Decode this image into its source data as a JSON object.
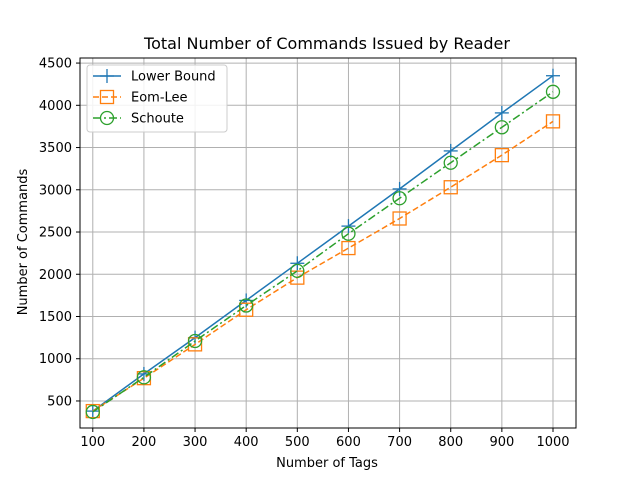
{
  "chart_data": {
    "type": "line",
    "title": "Total Number of Commands Issued by Reader",
    "xlabel": "Number of Tags",
    "ylabel": "Number of Commands",
    "x": [
      100,
      200,
      300,
      400,
      500,
      600,
      700,
      800,
      900,
      1000
    ],
    "xticks": [
      100,
      200,
      300,
      400,
      500,
      600,
      700,
      800,
      900,
      1000
    ],
    "yticks": [
      500,
      1000,
      1500,
      2000,
      2500,
      3000,
      3500,
      4000,
      4500
    ],
    "xlim": [
      75,
      1045
    ],
    "ylim": [
      180,
      4560
    ],
    "grid": true,
    "legend_position": "top-left",
    "series": [
      {
        "name": "Lower Bound",
        "color": "#1f77b4",
        "linestyle": "solid",
        "marker": "plus",
        "values": [
          380,
          820,
          1250,
          1690,
          2130,
          2570,
          3010,
          3460,
          3910,
          4350
        ]
      },
      {
        "name": "Eom-Lee",
        "color": "#ff7f0e",
        "linestyle": "dashed",
        "marker": "square",
        "values": [
          380,
          770,
          1170,
          1580,
          1960,
          2310,
          2660,
          3030,
          3410,
          3810
        ]
      },
      {
        "name": "Schoute",
        "color": "#2ca02c",
        "linestyle": "dashdot",
        "marker": "circle",
        "values": [
          370,
          780,
          1210,
          1630,
          2040,
          2480,
          2900,
          3320,
          3740,
          4160
        ]
      }
    ]
  }
}
